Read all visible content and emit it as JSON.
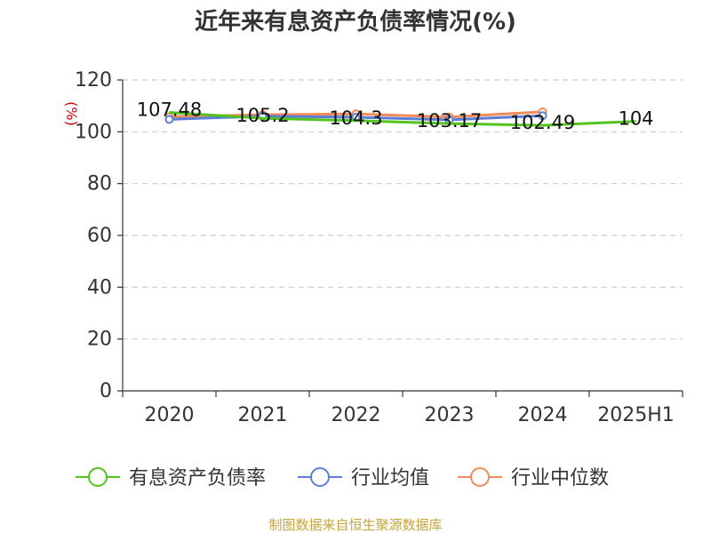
{
  "chart_data": {
    "type": "line",
    "title": "近年来有息资产负债率情况(%)",
    "ylabel": "(%)",
    "xlabel": "",
    "categories": [
      "2020",
      "2021",
      "2022",
      "2023",
      "2024",
      "2025H1"
    ],
    "ylim": [
      0,
      120
    ],
    "yticks": [
      0,
      20,
      40,
      60,
      80,
      100,
      120
    ],
    "grid": true,
    "legend_position": "bottom",
    "series": [
      {
        "name": "有息资产负债率",
        "color": "#52c41a",
        "values": [
          107.48,
          105.2,
          104.3,
          103.17,
          102.49,
          104
        ],
        "labels": [
          "107.48",
          "105.2",
          "104.3",
          "103.17",
          "102.49",
          "104"
        ]
      },
      {
        "name": "行业均值",
        "color": "#5b7fd6",
        "values": [
          104.8,
          106.0,
          105.6,
          104.6,
          106.2,
          null
        ]
      },
      {
        "name": "行业中位数",
        "color": "#f08c5a",
        "values": [
          105.8,
          106.6,
          106.9,
          105.7,
          107.7,
          null
        ]
      }
    ]
  },
  "source": "制图数据来自恒生聚源数据库"
}
